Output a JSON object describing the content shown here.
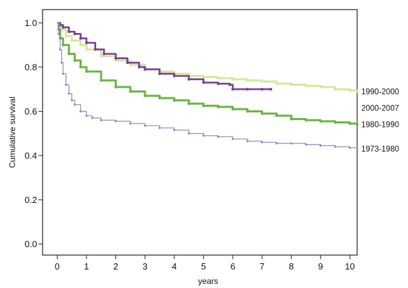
{
  "chart_data": {
    "type": "line",
    "title": "",
    "xlabel": "years",
    "ylabel": "Cumulative survival",
    "xlim": [
      -0.5,
      10.25
    ],
    "ylim": [
      -0.05,
      1.06
    ],
    "xticks": [
      0,
      1,
      2,
      3,
      4,
      5,
      6,
      7,
      8,
      9,
      10
    ],
    "yticks": [
      0.0,
      0.2,
      0.4,
      0.6,
      0.8,
      1.0
    ],
    "ytick_labels": [
      "0.0",
      "0.2",
      "0.4",
      "0.6",
      "0.8",
      "1.0"
    ],
    "legend_position": "right of plot, direct labels",
    "grid": false,
    "series": [
      {
        "name": "1990-2000",
        "color": "#d6e89a",
        "x": [
          0,
          0.1,
          0.3,
          0.5,
          0.8,
          1.0,
          1.5,
          2.0,
          2.5,
          3.0,
          3.5,
          4.0,
          4.5,
          5.0,
          5.5,
          6.0,
          6.5,
          7.0,
          7.5,
          8.0,
          8.5,
          9.0,
          9.5,
          10.0,
          10.25
        ],
        "y": [
          1.0,
          0.97,
          0.94,
          0.92,
          0.9,
          0.88,
          0.85,
          0.83,
          0.81,
          0.79,
          0.78,
          0.77,
          0.76,
          0.755,
          0.75,
          0.745,
          0.74,
          0.735,
          0.725,
          0.72,
          0.715,
          0.71,
          0.7,
          0.695,
          0.69
        ]
      },
      {
        "name": "2000-2007",
        "color": "#7b3f98",
        "x": [
          0,
          0.1,
          0.2,
          0.4,
          0.6,
          0.8,
          1.0,
          1.3,
          1.6,
          2.0,
          2.4,
          2.8,
          3.0,
          3.5,
          4.0,
          4.5,
          5.0,
          5.5,
          5.9,
          6.0,
          6.5,
          7.0,
          7.3
        ],
        "y": [
          1.0,
          0.99,
          0.98,
          0.96,
          0.95,
          0.93,
          0.91,
          0.88,
          0.86,
          0.84,
          0.82,
          0.8,
          0.79,
          0.77,
          0.76,
          0.745,
          0.73,
          0.725,
          0.72,
          0.7,
          0.7,
          0.7,
          0.7
        ]
      },
      {
        "name": "1980-1990",
        "color": "#6ab544",
        "x": [
          0,
          0.05,
          0.1,
          0.2,
          0.4,
          0.6,
          0.8,
          1.0,
          1.5,
          2.0,
          2.5,
          3.0,
          3.5,
          4.0,
          4.5,
          5.0,
          5.5,
          6.0,
          6.5,
          7.0,
          7.5,
          8.0,
          8.5,
          9.0,
          9.5,
          10.0,
          10.25
        ],
        "y": [
          1.0,
          0.97,
          0.93,
          0.9,
          0.86,
          0.83,
          0.8,
          0.78,
          0.74,
          0.71,
          0.69,
          0.67,
          0.66,
          0.65,
          0.635,
          0.625,
          0.62,
          0.61,
          0.6,
          0.59,
          0.58,
          0.565,
          0.56,
          0.555,
          0.55,
          0.545,
          0.54
        ]
      },
      {
        "name": "1973-1980",
        "color": "#8c8fbf",
        "x": [
          0,
          0.05,
          0.1,
          0.15,
          0.2,
          0.3,
          0.4,
          0.5,
          0.6,
          0.8,
          1.0,
          1.2,
          1.5,
          2.0,
          2.5,
          3.0,
          3.5,
          4.0,
          4.5,
          5.0,
          5.5,
          6.0,
          6.5,
          7.0,
          7.5,
          8.0,
          8.5,
          9.0,
          9.5,
          10.0,
          10.25
        ],
        "y": [
          1.0,
          0.95,
          0.88,
          0.82,
          0.77,
          0.72,
          0.68,
          0.65,
          0.63,
          0.6,
          0.58,
          0.57,
          0.56,
          0.555,
          0.545,
          0.535,
          0.525,
          0.515,
          0.5,
          0.49,
          0.485,
          0.475,
          0.465,
          0.46,
          0.455,
          0.455,
          0.45,
          0.445,
          0.44,
          0.435,
          0.43
        ]
      }
    ]
  }
}
